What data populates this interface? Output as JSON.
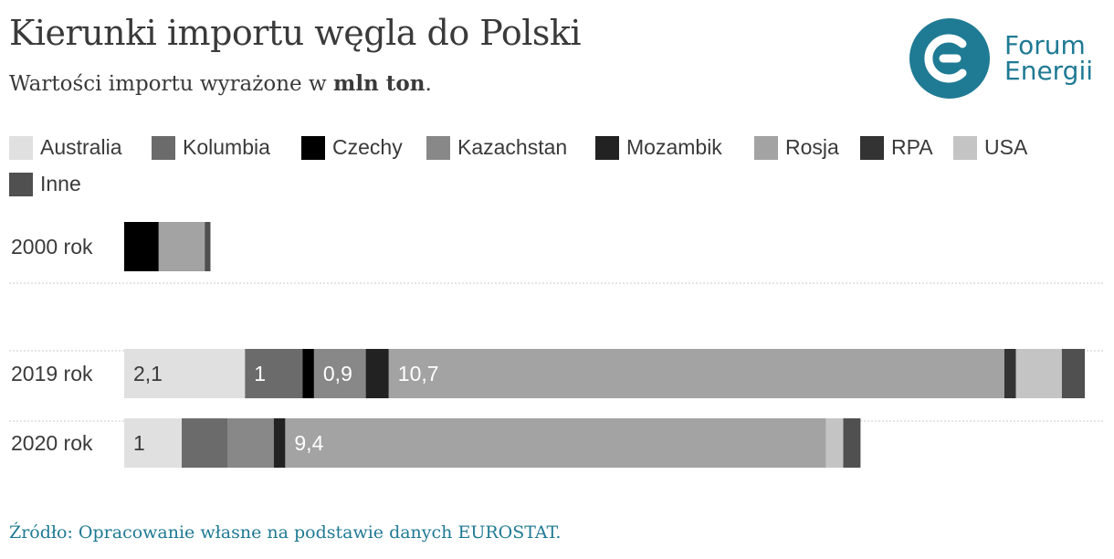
{
  "header": {
    "title": "Kierunki importu węgla do Polski",
    "subtitle_prefix": "Wartości importu wyrażone w ",
    "subtitle_bold": "mln ton",
    "subtitle_suffix": "."
  },
  "logo": {
    "line1": "Forum",
    "line2": "Energii",
    "icon": "forum-energii-logo-icon",
    "color": "#1f7a94"
  },
  "source": "Źródło: Opracowanie własne na podstawie danych EUROSTAT.",
  "chart_data": {
    "type": "bar",
    "orientation": "horizontal",
    "stacked": true,
    "categories": [
      "2000 rok",
      "2019 rok",
      "2020 rok"
    ],
    "series": [
      {
        "name": "Australia",
        "color": "#e0e0e0",
        "values": [
          0,
          2.1,
          1.0
        ]
      },
      {
        "name": "Kolumbia",
        "color": "#6b6b6b",
        "values": [
          0,
          1.0,
          0.8
        ]
      },
      {
        "name": "Czechy",
        "color": "#000000",
        "values": [
          0.6,
          0.2,
          0
        ]
      },
      {
        "name": "Kazachstan",
        "color": "#888888",
        "values": [
          0,
          0.9,
          0.8
        ]
      },
      {
        "name": "Mozambik",
        "color": "#222222",
        "values": [
          0,
          0.4,
          0.2
        ]
      },
      {
        "name": "Rosja",
        "color": "#a3a3a3",
        "values": [
          0.8,
          10.7,
          9.4
        ]
      },
      {
        "name": "RPA",
        "color": "#333333",
        "values": [
          0,
          0.2,
          0
        ]
      },
      {
        "name": "USA",
        "color": "#c4c4c4",
        "values": [
          0,
          0.8,
          0.3
        ]
      },
      {
        "name": "Inne",
        "color": "#505050",
        "values": [
          0.1,
          0.4,
          0.3
        ]
      }
    ],
    "data_labels": [
      {
        "category": "2019 rok",
        "series": "Australia",
        "text": "2,1"
      },
      {
        "category": "2019 rok",
        "series": "Kolumbia",
        "text": "1"
      },
      {
        "category": "2019 rok",
        "series": "Kazachstan",
        "text": "0,9"
      },
      {
        "category": "2019 rok",
        "series": "Rosja",
        "text": "10,7"
      },
      {
        "category": "2020 rok",
        "series": "Australia",
        "text": "1"
      },
      {
        "category": "2020 rok",
        "series": "Rosja",
        "text": "9,4"
      }
    ],
    "legend_position": "top",
    "grid": false
  }
}
